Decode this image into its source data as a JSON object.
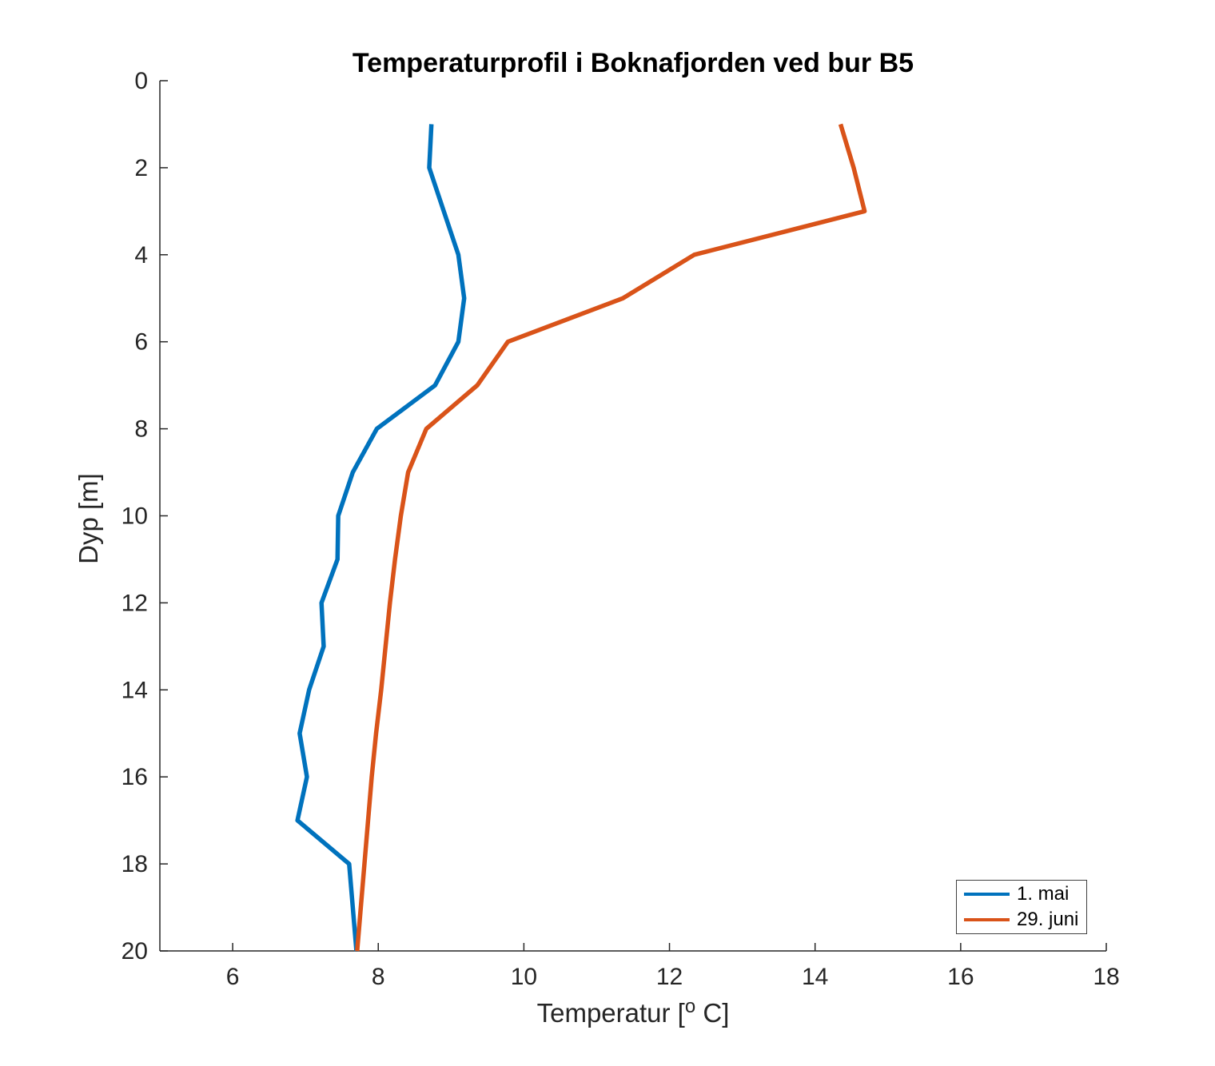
{
  "chart_data": {
    "type": "line",
    "title": "Temperaturprofil i Boknafjorden ved bur B5",
    "xlabel": "Temperatur [° C]",
    "xlabel_parts": {
      "prefix": "Temperatur [",
      "sup": "o",
      "suffix": " C]"
    },
    "ylabel": "Dyp [m]",
    "xlim": [
      5,
      18
    ],
    "ylim": [
      0,
      20
    ],
    "y_axis_reversed": true,
    "grid": false,
    "x_ticks": [
      6,
      8,
      10,
      12,
      14,
      16,
      18
    ],
    "y_ticks": [
      0,
      2,
      4,
      6,
      8,
      10,
      12,
      14,
      16,
      18,
      20
    ],
    "axis_color": "#262626",
    "legend_position": "bottom-right",
    "depths": [
      1,
      2,
      3,
      4,
      5,
      6,
      7,
      8,
      9,
      10,
      11,
      12,
      13,
      14,
      15,
      16,
      17,
      18,
      19,
      20
    ],
    "series": [
      {
        "name": "1. mai",
        "color": "#0072BD",
        "temps": [
          8.73,
          8.7,
          8.9,
          9.1,
          9.18,
          9.1,
          8.78,
          7.98,
          7.65,
          7.45,
          7.44,
          7.22,
          7.25,
          7.05,
          6.92,
          7.02,
          6.89,
          7.6,
          7.65,
          7.7
        ]
      },
      {
        "name": "29. juni",
        "color": "#D95319",
        "temps": [
          14.35,
          14.53,
          14.68,
          12.34,
          11.36,
          9.78,
          9.36,
          8.66,
          8.41,
          8.31,
          8.23,
          8.16,
          8.1,
          8.04,
          7.97,
          7.91,
          7.86,
          7.81,
          7.76,
          7.71
        ]
      }
    ]
  }
}
